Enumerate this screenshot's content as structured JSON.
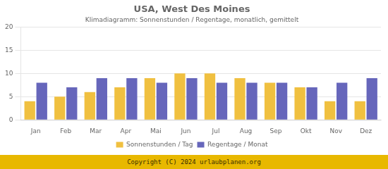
{
  "chart_data": {
    "type": "bar",
    "title": "USA, West Des Moines",
    "subtitle": "Klimadiagramm: Sonnenstunden / Regentage, monatlich, gemittelt",
    "categories": [
      "Jan",
      "Feb",
      "Mar",
      "Apr",
      "Mai",
      "Jun",
      "Jul",
      "Aug",
      "Sep",
      "Okt",
      "Nov",
      "Dez"
    ],
    "series": [
      {
        "name": "Sonnenstunden / Tag",
        "color": "#F0C040",
        "values": [
          4,
          5,
          6,
          7,
          9,
          10,
          10,
          9,
          8,
          7,
          4,
          4
        ]
      },
      {
        "name": "Regentage / Monat",
        "color": "#6666BB",
        "values": [
          8,
          7,
          9,
          9,
          8,
          9,
          8,
          8,
          8,
          7,
          8,
          9
        ]
      }
    ],
    "ylim": [
      0,
      20
    ],
    "yticks": [
      0,
      5,
      10,
      15,
      20
    ],
    "grid": true,
    "legend": "bottom",
    "annotations": [
      "Copyright (C) 2024 urlaubplanen.org"
    ]
  }
}
